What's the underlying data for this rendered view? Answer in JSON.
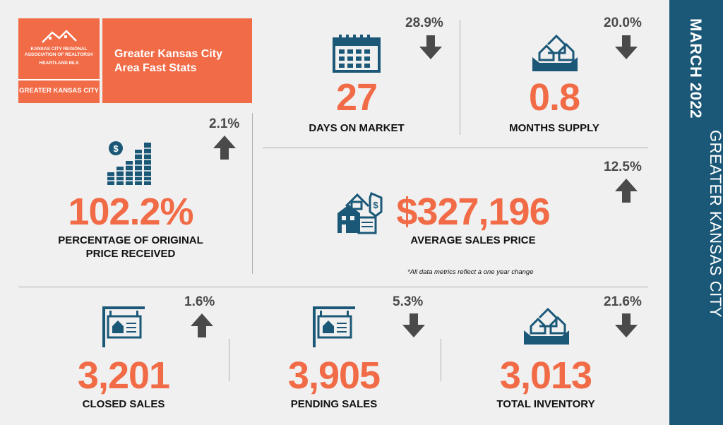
{
  "logo": {
    "org_line1": "KANSAS CITY REGIONAL",
    "org_line2": "ASSOCIATION OF REALTORS®",
    "org_line3": "HEARTLAND MLS",
    "region": "GREATER KANSAS CITY"
  },
  "header": {
    "title_line1": "Greater Kansas City",
    "title_line2": "Area Fast Stats"
  },
  "sidebar": {
    "date": "MARCH 2022",
    "region": "GREATER KANSAS CITY"
  },
  "stats": {
    "days_on_market": {
      "value": "27",
      "label": "DAYS ON MARKET",
      "change": "28.9%",
      "direction": "down",
      "icon": "calendar-icon"
    },
    "months_supply": {
      "value": "0.8",
      "label": "MONTHS SUPPLY",
      "change": "20.0%",
      "direction": "down",
      "icon": "houses-box-icon"
    },
    "pct_original_price": {
      "value": "102.2%",
      "label_line1": "PERCENTAGE OF ORIGINAL",
      "label_line2": "PRICE RECEIVED",
      "change": "2.1%",
      "direction": "up",
      "icon": "coins-stack-icon"
    },
    "avg_sales_price": {
      "value": "$327,196",
      "label": "AVERAGE SALES PRICE",
      "change": "12.5%",
      "direction": "up",
      "icon": "house-price-tag-icon"
    },
    "closed_sales": {
      "value": "3,201",
      "label": "CLOSED SALES",
      "change": "1.6%",
      "direction": "up",
      "icon": "sold-sign-icon"
    },
    "pending_sales": {
      "value": "3,905",
      "label": "PENDING SALES",
      "change": "5.3%",
      "direction": "down",
      "icon": "sale-sign-icon"
    },
    "total_inventory": {
      "value": "3,013",
      "label": "TOTAL INVENTORY",
      "change": "21.6%",
      "direction": "down",
      "icon": "houses-box-icon"
    }
  },
  "footnote": "*All data metrics reflect a one year change",
  "colors": {
    "accent": "#f26b47",
    "sidebar": "#1b5878",
    "icon": "#1b5878",
    "arrow": "#4a4a4a"
  }
}
